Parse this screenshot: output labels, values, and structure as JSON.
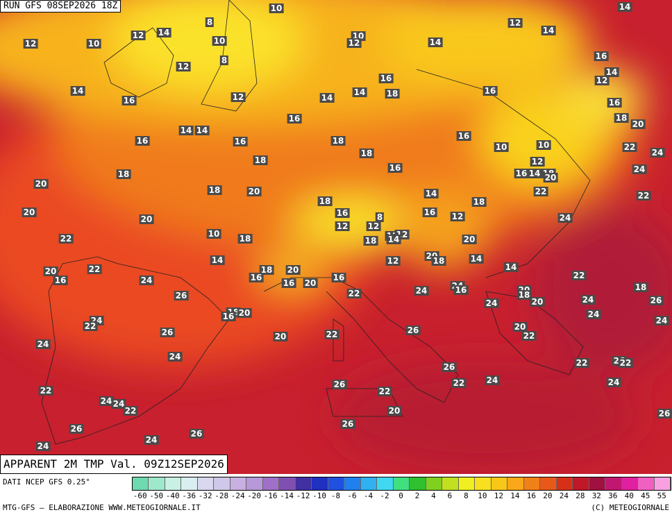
{
  "header": {
    "run": "RUN GFS 08SEP2026 18Z",
    "title": "APPARENT 2M TMP Val. 09Z12SEP2026"
  },
  "footer": {
    "source": "DATI NCEP GFS 0.25°",
    "credit": "MTG-GFS — ELABORAZIONE WWW.METEOGIORNALE.IT",
    "copyright": "(C) METEOGIORNALE"
  },
  "scale": {
    "labels": [
      "-60",
      "-50",
      "-40",
      "-36",
      "-32",
      "-28",
      "-24",
      "-20",
      "-16",
      "-14",
      "-12",
      "-10",
      "-8",
      "-6",
      "-4",
      "-2",
      "0",
      "2",
      "4",
      "6",
      "8",
      "10",
      "12",
      "14",
      "16",
      "20",
      "24",
      "28",
      "32",
      "36",
      "40",
      "45",
      "55"
    ],
    "colors": [
      "#6fd9b0",
      "#9fe8cc",
      "#c8f0e4",
      "#d8eef0",
      "#d8d8ee",
      "#d0c8e8",
      "#c8b0e0",
      "#b898d8",
      "#a070c8",
      "#8050b0",
      "#4030a0",
      "#2030c0",
      "#2050e0",
      "#2080f0",
      "#30b0f0",
      "#40d8f0",
      "#40e080",
      "#30c030",
      "#80d020",
      "#c0e020",
      "#f0f020",
      "#f8e020",
      "#f8c818",
      "#f8a818",
      "#f08018",
      "#e85818",
      "#d83018",
      "#c01828",
      "#a01040",
      "#c01870",
      "#e020a0",
      "#f060c0",
      "#f8a0e0"
    ]
  },
  "labels": [
    10,
    14,
    8,
    14,
    12,
    10,
    12,
    12,
    14,
    12,
    10,
    10,
    14,
    8,
    12,
    16,
    14,
    12,
    16,
    14,
    18,
    16,
    14,
    16,
    12,
    14,
    16,
    16,
    18,
    20,
    14,
    14,
    16,
    16,
    16,
    18,
    10,
    10,
    22,
    24,
    18,
    18,
    12,
    16,
    16,
    14,
    18,
    20,
    24,
    18,
    20,
    18,
    20,
    14,
    22,
    22,
    18,
    18,
    20,
    16,
    8,
    16,
    12,
    24,
    20,
    12,
    12,
    10,
    22,
    18,
    18,
    12,
    12,
    14,
    20,
    14,
    20,
    18,
    14,
    12,
    22,
    20,
    16,
    18,
    20,
    14,
    16,
    16,
    20,
    16,
    22,
    24,
    18,
    24,
    16,
    22,
    24,
    20,
    18,
    20,
    24,
    24,
    26,
    26,
    18,
    16,
    20,
    24,
    24,
    22,
    24,
    26,
    20,
    22,
    26,
    20,
    22,
    24,
    24,
    22,
    26,
    22,
    26,
    22,
    24,
    26,
    24,
    22,
    22,
    24,
    24,
    22,
    20,
    26,
    26,
    26,
    26,
    24,
    24
  ]
}
